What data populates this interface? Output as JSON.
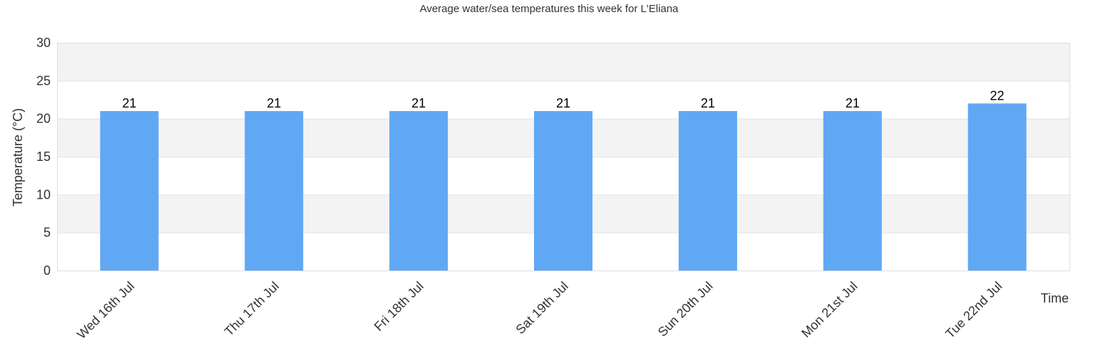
{
  "chart_data": {
    "type": "bar",
    "title": "Average water/sea temperatures this week for L'Eliana",
    "xlabel": "Time",
    "ylabel": "Temperature (°C)",
    "categories": [
      "Wed 16th Jul",
      "Thu 17th Jul",
      "Fri 18th Jul",
      "Sat 19th Jul",
      "Sun 20th Jul",
      "Mon 21st Jul",
      "Tue 22nd Jul"
    ],
    "values": [
      21,
      21,
      21,
      21,
      21,
      21,
      22
    ],
    "data_labels": [
      "21",
      "21",
      "21",
      "21",
      "21",
      "21",
      "22"
    ],
    "ylim": [
      0,
      30
    ],
    "yticks": [
      "0",
      "5",
      "10",
      "15",
      "20",
      "25",
      "30"
    ],
    "grid": true,
    "legend": "none",
    "colors": {
      "bar": "#60a8f4",
      "band": "#f3f3f3",
      "gridline": "#e3e3e3"
    }
  }
}
